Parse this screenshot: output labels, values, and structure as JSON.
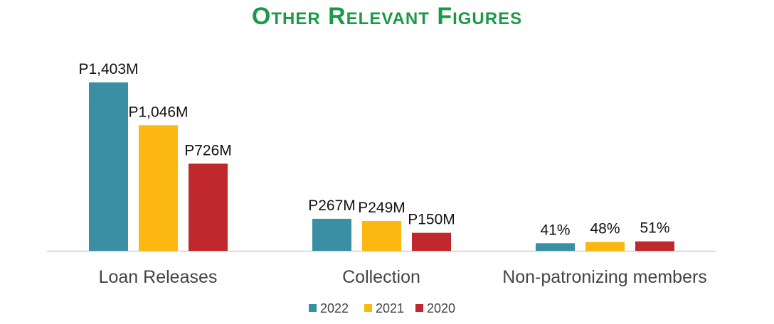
{
  "title": "Other Relevant Figures",
  "colors": {
    "title": "#1a9a47",
    "axis": "#d0d0d0",
    "2022": "#3a8fa5",
    "2021": "#fcb810",
    "2020": "#c0282e"
  },
  "chart_data": {
    "type": "bar",
    "title": "Other Relevant Figures",
    "categories": [
      "Loan Releases",
      "Collection",
      "Non-patronizing members"
    ],
    "series": [
      {
        "name": "2022",
        "color": "#3a8fa5",
        "values": [
          1403,
          267,
          41
        ],
        "labels": [
          "P1,403M",
          "P267M",
          "41%"
        ]
      },
      {
        "name": "2021",
        "color": "#fcb810",
        "values": [
          1046,
          249,
          48
        ],
        "labels": [
          "P1,046M",
          "P249M",
          "48%"
        ]
      },
      {
        "name": "2020",
        "color": "#c0282e",
        "values": [
          726,
          150,
          51
        ],
        "labels": [
          "P726M",
          "P150M",
          "51%"
        ]
      }
    ],
    "legend_position": "bottom-center",
    "grid": false
  }
}
